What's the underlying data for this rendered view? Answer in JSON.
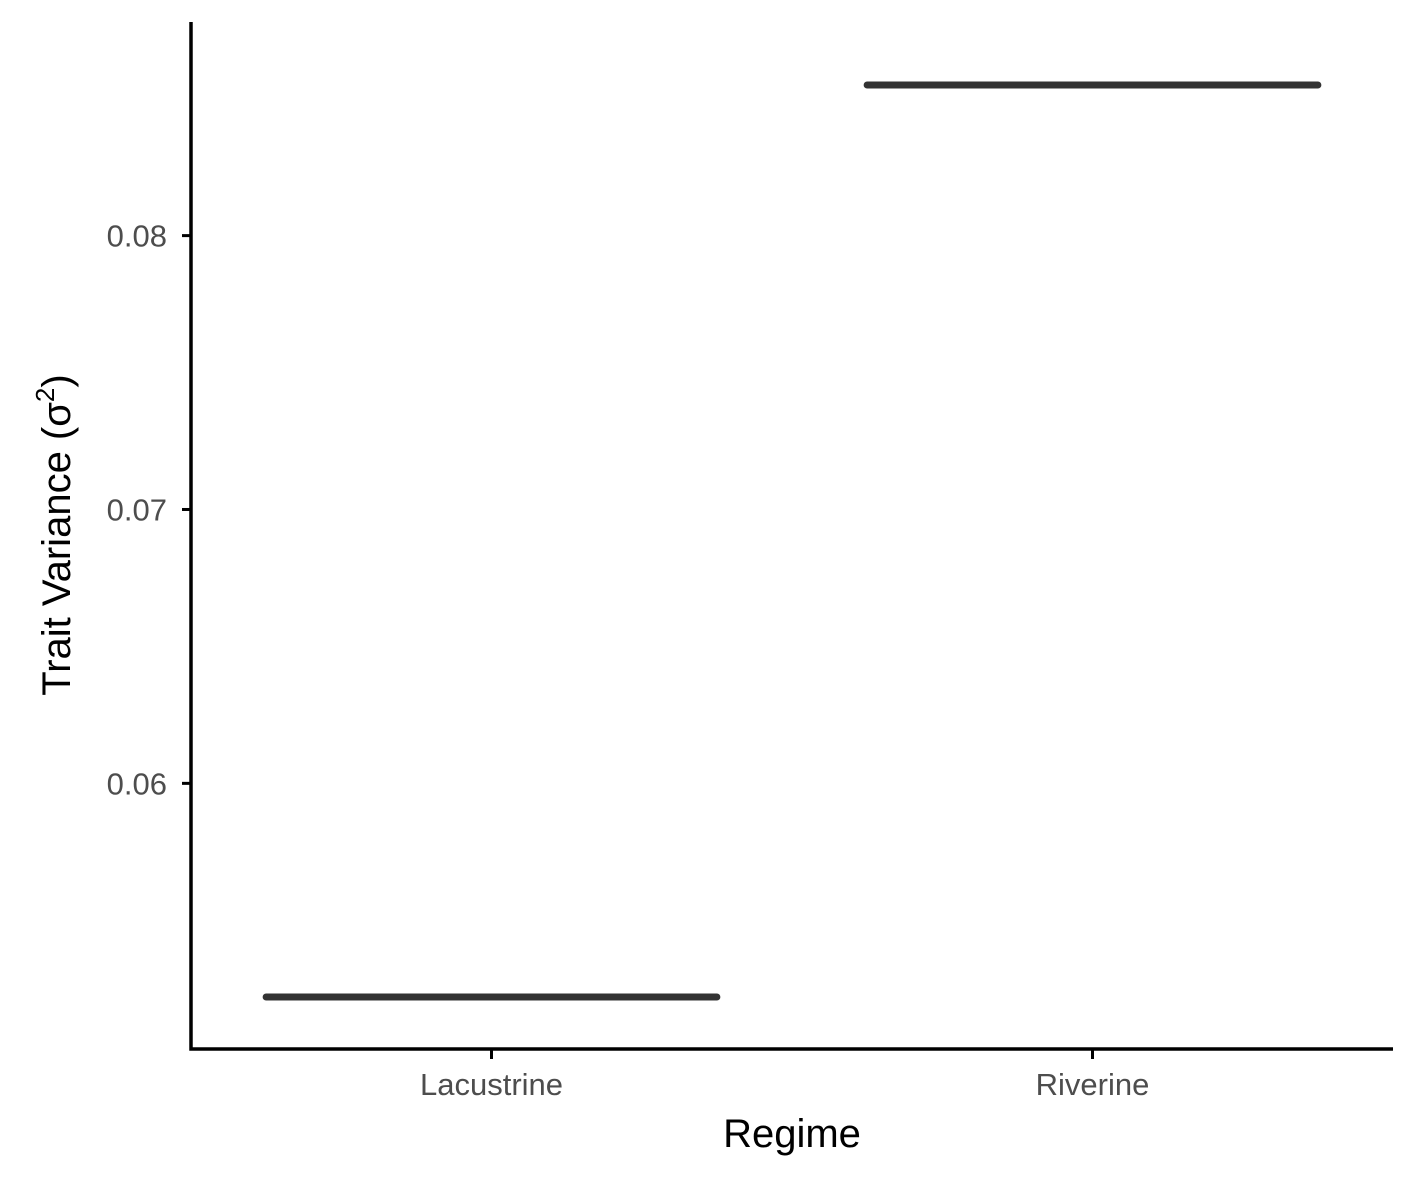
{
  "chart_data": {
    "type": "crossbar",
    "categories": [
      "Lacustrine",
      "Riverine"
    ],
    "values": [
      0.0522,
      0.0855
    ],
    "xlabel": "Regime",
    "ylabel_main": "Trait Variance (σ",
    "ylabel_sup": "2",
    "ylabel_close": ")",
    "yticks": [
      0.06,
      0.07,
      0.08
    ],
    "ytick_labels": [
      "0.06",
      "0.07",
      "0.08"
    ],
    "ylim": [
      0.0503,
      0.0878
    ],
    "grid": false,
    "legend": "none",
    "colors": {
      "line": "#333333",
      "axis": "#000000",
      "tick_text": "#4d4d4d"
    }
  }
}
